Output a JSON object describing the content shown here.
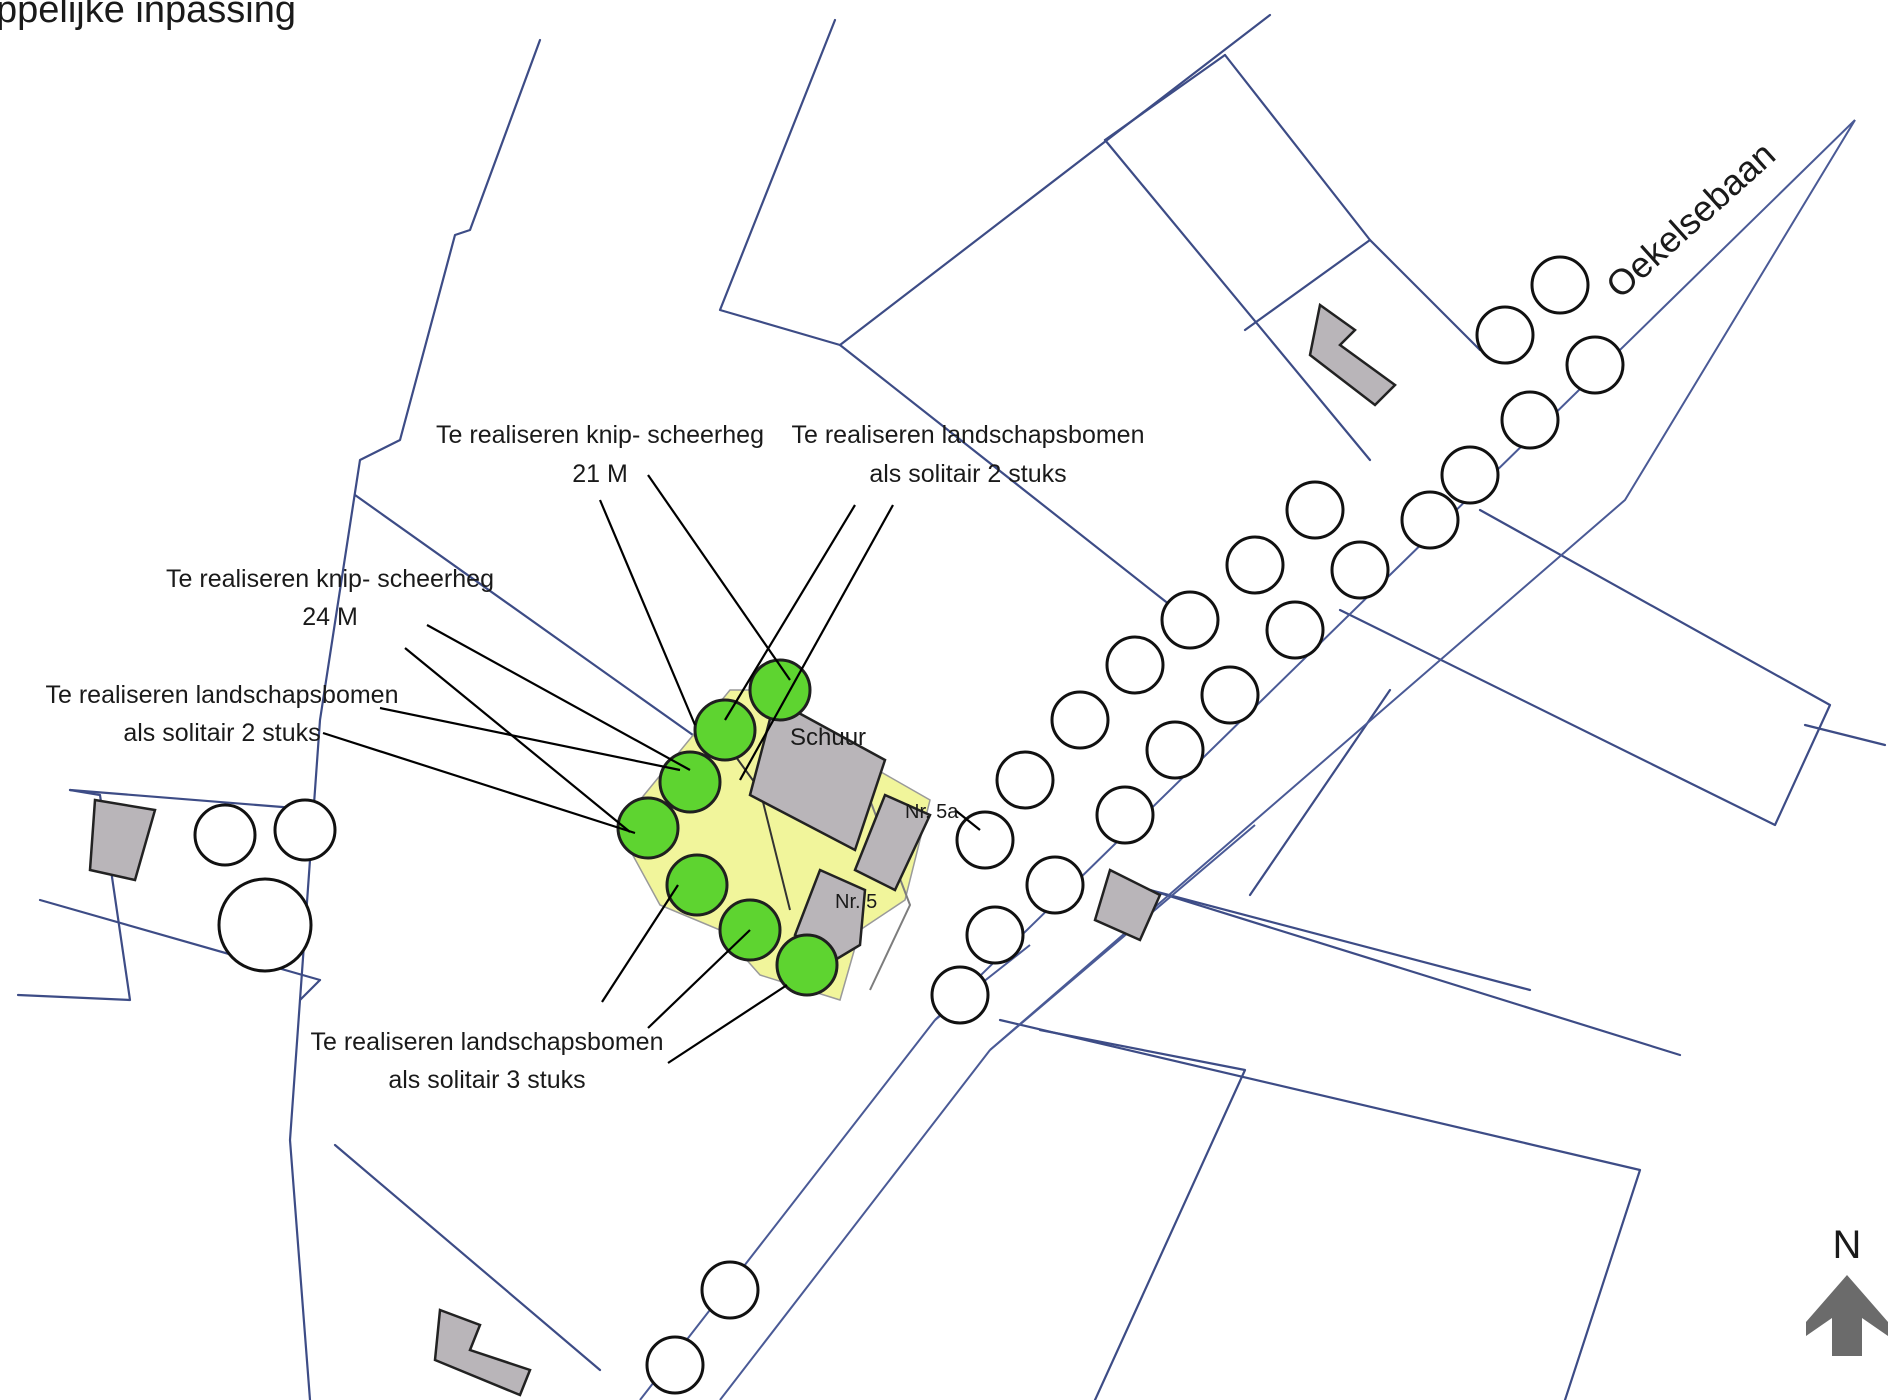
{
  "title": "ppelijke inpassing",
  "street": "Oekelsebaan",
  "north": "N",
  "buildings": {
    "schuur": "Schuur",
    "nr5a": "Nr. 5a",
    "nr5": "Nr. 5"
  },
  "labels": {
    "hedge21": {
      "line1": "Te realiseren knip- scheerheg",
      "line2": "21 M"
    },
    "trees2_top": {
      "line1": "Te realiseren landschapsbomen",
      "line2": "als solitair 2 stuks"
    },
    "hedge24": {
      "line1": "Te realiseren knip- scheerheg",
      "line2": "24 M"
    },
    "trees2_left": {
      "line1": "Te realiseren landschapsbomen",
      "line2": "als solitair 2 stuks"
    },
    "trees3": {
      "line1": "Te realiseren landschapsbomen",
      "line2": "als solitair 3 stuks"
    }
  },
  "colors": {
    "new_tree": "#5ed430",
    "yard": "#ecf27a",
    "parcel_line": "#3d4c86",
    "north_arrow": "#6b6b6b"
  }
}
